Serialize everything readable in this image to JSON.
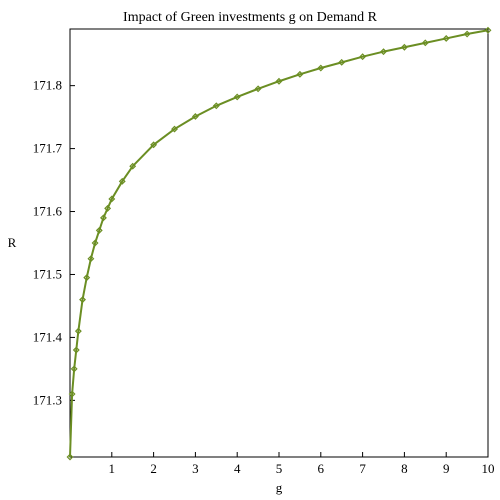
{
  "chart_data": {
    "type": "line",
    "title": "Impact of Green investments g on Demand R",
    "xlabel": "g",
    "ylabel": "R",
    "xlim": [
      0,
      10
    ],
    "ylim": [
      171.21,
      171.89
    ],
    "x_ticks": [
      1,
      2,
      3,
      4,
      5,
      6,
      7,
      8,
      9,
      10
    ],
    "y_ticks": [
      171.3,
      171.4,
      171.5,
      171.6,
      171.7,
      171.8
    ],
    "grid": false,
    "marker": "diamond",
    "series": [
      {
        "color": "#6b8e23",
        "x": [
          0.0,
          0.05,
          0.1,
          0.15,
          0.2,
          0.3,
          0.4,
          0.5,
          0.6,
          0.7,
          0.8,
          0.9,
          1.0,
          1.25,
          1.5,
          2.0,
          2.5,
          3.0,
          3.5,
          4.0,
          4.5,
          5.0,
          5.5,
          6.0,
          6.5,
          7.0,
          7.5,
          8.0,
          8.5,
          9.0,
          9.5,
          10.0
        ],
        "y": [
          171.21,
          171.31,
          171.35,
          171.38,
          171.41,
          171.46,
          171.495,
          171.525,
          171.55,
          171.57,
          171.59,
          171.605,
          171.62,
          171.648,
          171.672,
          171.706,
          171.731,
          171.751,
          171.768,
          171.782,
          171.795,
          171.807,
          171.818,
          171.828,
          171.837,
          171.846,
          171.854,
          171.861,
          171.868,
          171.875,
          171.882,
          171.888
        ]
      }
    ]
  }
}
